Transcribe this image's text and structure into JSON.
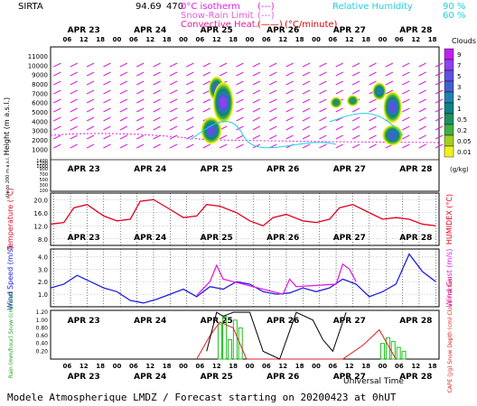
{
  "header": {
    "station": "SIRTA",
    "coords": "94.69",
    "coords_suffix": "470",
    "legend_isotherm": "0°C isotherm",
    "legend_isotherm_box": "(---)",
    "legend_snowrain": "Snow-Rain Limit",
    "legend_snowrain_box": "(---)",
    "legend_convective": "Convective Heat.",
    "legend_convective_box": "(——)",
    "legend_convective_unit": "(°C/minute)",
    "legend_rh": "Relative Humidity",
    "legend_rh_90": "90 %",
    "legend_rh_60": "60 %",
    "colors": {
      "magenta": "#e020e0",
      "red": "#e00000",
      "cyan": "#20d0e0"
    }
  },
  "time_axis": {
    "dates": [
      "APR 23",
      "APR 24",
      "APR 25",
      "APR 26",
      "APR 27",
      "APR 28"
    ],
    "hours": [
      "06",
      "12",
      "18",
      "00",
      "06",
      "12",
      "18",
      "00",
      "06",
      "12",
      "18",
      "00",
      "06",
      "12",
      "18",
      "00",
      "06",
      "12",
      "18",
      "00",
      "06",
      "12",
      "18"
    ],
    "xlabel": "Universal Time"
  },
  "footer": "Modele Atmospherique LMDZ / Forecast starting on 20200423 at 0hUT",
  "chart_data": [
    {
      "type": "heatmap",
      "title": "Clouds",
      "ylabel": "Height (m a.s.l.)",
      "ylabel_low": "Up to 200 m a.s.l.",
      "yticks_upper": [
        1000,
        2000,
        3000,
        4000,
        5000,
        6000,
        7000,
        8000,
        9000,
        10000,
        11000
      ],
      "yticks_lower": [
        100,
        200,
        300,
        400,
        500,
        600,
        700,
        800,
        900,
        1000,
        1200,
        1400
      ],
      "colorbar_ticks": [
        "9",
        "7",
        "5",
        "3",
        "2",
        "1",
        "0.5",
        "0.2",
        "0.05",
        "0.01"
      ],
      "colorbar_unit": "(g/kg)",
      "colorbar_colors": [
        "#c020f0",
        "#9040f0",
        "#6050e0",
        "#4060d0",
        "#2080b0",
        "#108080",
        "#209060",
        "#40b040",
        "#a0d020",
        "#f0f020"
      ],
      "cloud_cells": [
        {
          "day": 2.5,
          "z": 7500,
          "w": 0.18,
          "h": 2200,
          "level": 6
        },
        {
          "day": 2.6,
          "z": 6000,
          "w": 0.25,
          "h": 4000,
          "level": 8
        },
        {
          "day": 2.42,
          "z": 3000,
          "w": 0.25,
          "h": 2500,
          "level": 7
        },
        {
          "day": 4.3,
          "z": 6000,
          "w": 0.12,
          "h": 800,
          "level": 3
        },
        {
          "day": 4.55,
          "z": 6200,
          "w": 0.12,
          "h": 800,
          "level": 3
        },
        {
          "day": 4.95,
          "z": 7200,
          "w": 0.15,
          "h": 1500,
          "level": 5
        },
        {
          "day": 5.15,
          "z": 5500,
          "w": 0.22,
          "h": 3000,
          "level": 7
        },
        {
          "day": 5.15,
          "z": 2500,
          "w": 0.25,
          "h": 1800,
          "level": 6
        }
      ]
    },
    {
      "type": "line",
      "ylabel": "Temperature (°C)",
      "ylabel_right": "HUMIDEX (°C)",
      "yticks": [
        8.0,
        12.0,
        16.0,
        20.0
      ],
      "ylim": [
        6,
        22
      ],
      "series": [
        {
          "color": "#e00020",
          "x": [
            0.0,
            0.2,
            0.35,
            0.55,
            0.8,
            1.0,
            1.2,
            1.35,
            1.55,
            1.8,
            2.0,
            2.2,
            2.35,
            2.55,
            2.8,
            3.0,
            3.2,
            3.35,
            3.55,
            3.8,
            4.0,
            4.2,
            4.35,
            4.55,
            4.8,
            5.0,
            5.2,
            5.4,
            5.6,
            5.8
          ],
          "values": [
            12.5,
            13.0,
            17.5,
            18.5,
            15.0,
            13.5,
            14.0,
            19.5,
            20.0,
            17.0,
            14.5,
            15.0,
            18.5,
            18.0,
            16.0,
            13.5,
            12.0,
            14.5,
            15.5,
            13.5,
            13.0,
            14.0,
            17.5,
            18.5,
            16.0,
            14.0,
            14.5,
            14.0,
            12.5,
            12.0
          ]
        }
      ]
    },
    {
      "type": "line",
      "ylabel": "Wind Speed (m/s)",
      "ylabel_right": "Wind Gust (m/s)",
      "yticks": [
        1.0,
        2.0,
        3.0,
        4.0
      ],
      "ylim": [
        0,
        4.6
      ],
      "series": [
        {
          "color": "#2020e0",
          "x": [
            0.0,
            0.2,
            0.4,
            0.6,
            0.8,
            1.0,
            1.2,
            1.4,
            1.6,
            1.8,
            2.0,
            2.2,
            2.4,
            2.6,
            2.8,
            3.0,
            3.2,
            3.4,
            3.6,
            3.8,
            4.0,
            4.2,
            4.4,
            4.6,
            4.8,
            5.0,
            5.2,
            5.4,
            5.6,
            5.8
          ],
          "values": [
            1.5,
            1.8,
            2.5,
            2.0,
            1.5,
            1.2,
            0.5,
            0.3,
            0.6,
            1.0,
            1.4,
            0.8,
            1.6,
            1.4,
            2.0,
            1.8,
            1.2,
            1.0,
            1.1,
            1.5,
            1.2,
            1.5,
            2.2,
            1.8,
            0.8,
            1.2,
            1.8,
            4.2,
            2.8,
            2.0
          ]
        },
        {
          "color": "#e020e0",
          "x": [
            2.2,
            2.4,
            2.5,
            2.6,
            3.5,
            3.6,
            3.7,
            4.3,
            4.4,
            4.5,
            4.6
          ],
          "values": [
            0.9,
            2.0,
            3.3,
            2.2,
            1.0,
            2.2,
            1.6,
            1.8,
            3.4,
            3.0,
            2.0
          ]
        }
      ]
    },
    {
      "type": "bar",
      "ylabel_left": "Rain (mm/hour) Snow (cm/hour)",
      "ylabel_right": "CAPE (J/g) Snow Depth (cm) Cloud Fraction",
      "yticks": [
        0.2,
        0.4,
        0.6,
        0.8,
        1.0,
        1.2
      ],
      "ylim": [
        0,
        1.25
      ],
      "rain_x": [
        2.55,
        2.62,
        2.7,
        2.78,
        2.86,
        5.0,
        5.08,
        5.16,
        5.24,
        5.32
      ],
      "rain_values": [
        0.9,
        1.1,
        0.5,
        1.0,
        0.8,
        0.4,
        0.55,
        0.45,
        0.3,
        0.2
      ],
      "cape": {
        "color": "#e02020",
        "x": [
          2.2,
          2.4,
          2.55,
          2.75,
          2.95,
          4.4,
          4.7,
          4.95,
          5.2
        ],
        "values": [
          0.0,
          0.6,
          0.95,
          0.8,
          0.0,
          0.0,
          0.35,
          0.75,
          0.0
        ]
      },
      "cloud_fraction": {
        "color": "#000000",
        "x": [
          2.35,
          2.5,
          2.6,
          2.75,
          3.0,
          3.2,
          3.45,
          3.7,
          3.95,
          4.1,
          4.25,
          4.45
        ],
        "values": [
          0.2,
          1.2,
          1.1,
          1.2,
          1.2,
          0.2,
          0.0,
          1.2,
          1.0,
          0.5,
          0.2,
          1.2
        ]
      }
    }
  ]
}
